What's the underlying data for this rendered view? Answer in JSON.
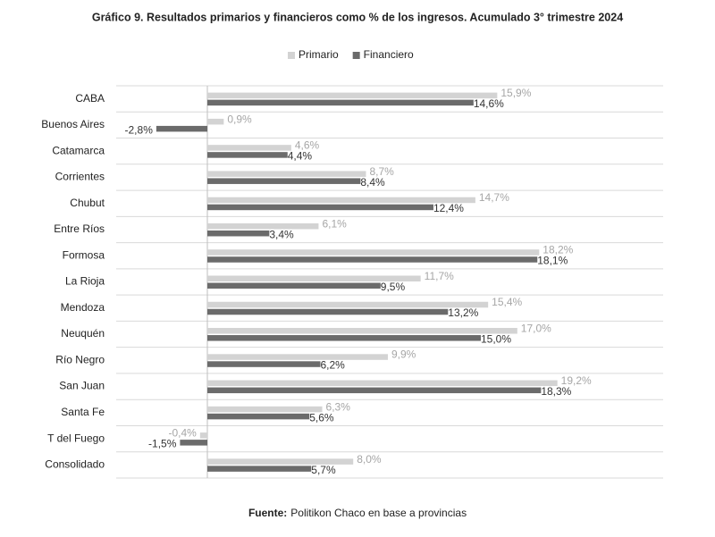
{
  "chart_data": {
    "type": "hbar",
    "title": "Gráfico 9. Resultados primarios y financieros como % de los ingresos. Acumulado 3° trimestre 2024",
    "categories": [
      "CABA",
      "Buenos Aires",
      "Catamarca",
      "Corrientes",
      "Chubut",
      "Entre Ríos",
      "Formosa",
      "La Rioja",
      "Mendoza",
      "Neuquén",
      "Río Negro",
      "San Juan",
      "Santa Fe",
      "T del Fuego",
      "Consolidado"
    ],
    "series": [
      {
        "name": "Primario",
        "color": "#d3d3d3",
        "label_color": "#a6a6a6",
        "values": [
          15.9,
          0.9,
          4.6,
          8.7,
          14.7,
          6.1,
          18.2,
          11.7,
          15.4,
          17.0,
          9.9,
          19.2,
          6.3,
          -0.4,
          8.0
        ],
        "value_labels": [
          "15,9%",
          "0,9%",
          "4,6%",
          "8,7%",
          "14,7%",
          "6,1%",
          "18,2%",
          "11,7%",
          "15,4%",
          "17,0%",
          "9,9%",
          "19,2%",
          "6,3%",
          "-0,4%",
          "8,0%"
        ]
      },
      {
        "name": "Financiero",
        "color": "#6b6b6b",
        "label_color": "#333333",
        "values": [
          14.6,
          -2.8,
          4.4,
          8.4,
          12.4,
          3.4,
          18.1,
          9.5,
          13.2,
          15.0,
          6.2,
          18.3,
          5.6,
          -1.5,
          5.7
        ],
        "value_labels": [
          "14,6%",
          "-2,8%",
          "4,4%",
          "8,4%",
          "12,4%",
          "3,4%",
          "18,1%",
          "9,5%",
          "13,2%",
          "15,0%",
          "6,2%",
          "18,3%",
          "5,6%",
          "-1,5%",
          "5,7%"
        ]
      }
    ],
    "xlim": [
      -5,
      25
    ],
    "source_label": "Fuente:",
    "source_text": "Politikon Chaco en base a provincias"
  }
}
